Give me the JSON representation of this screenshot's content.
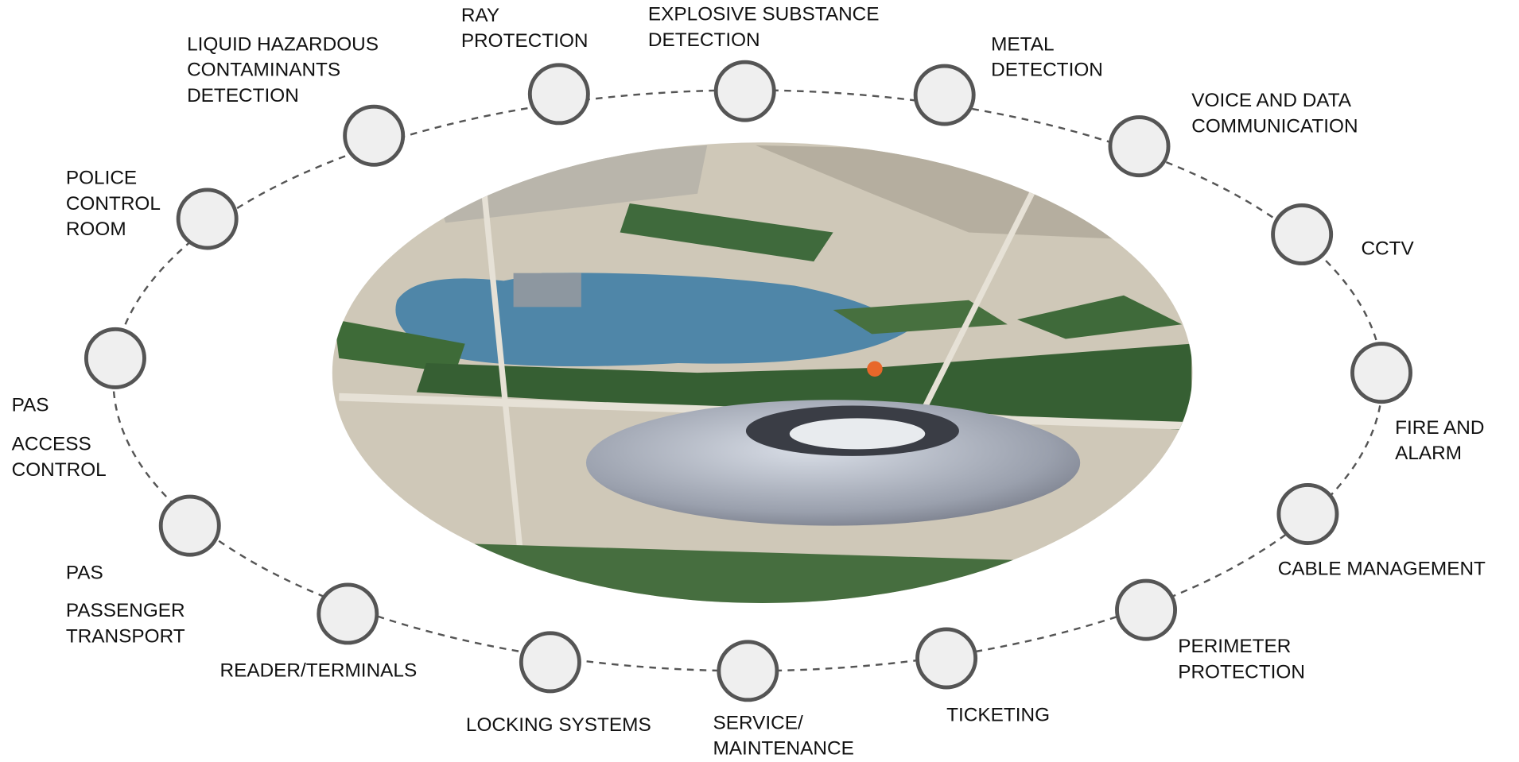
{
  "nodes": [
    {
      "label": [
        "POLICE",
        "CONTROL",
        "ROOM"
      ]
    },
    {
      "label": [
        "LIQUID HAZARDOUS",
        "CONTAMINANTS",
        "DETECTION"
      ]
    },
    {
      "label": [
        "RAY",
        "PROTECTION"
      ]
    },
    {
      "label": [
        "EXPLOSIVE SUBSTANCE",
        "DETECTION"
      ]
    },
    {
      "label": [
        "METAL",
        "DETECTION"
      ]
    },
    {
      "label": [
        "VOICE AND DATA",
        "COMMUNICATION"
      ]
    },
    {
      "label": [
        "CCTV"
      ]
    },
    {
      "label": [
        "FIRE AND",
        "ALARM"
      ]
    },
    {
      "label": [
        "CABLE MANAGEMENT"
      ]
    },
    {
      "label": [
        "PERIMETER",
        "PROTECTION"
      ]
    },
    {
      "label": [
        "TICKETING"
      ]
    },
    {
      "label": [
        "SERVICE/",
        "MAINTENANCE"
      ]
    },
    {
      "label": [
        "LOCKING SYSTEMS"
      ]
    },
    {
      "label": [
        "READER/TERMINALS"
      ]
    },
    {
      "tag": "PAS",
      "label": [
        "PASSENGER",
        "TRANSPORT"
      ]
    },
    {
      "tag": "PAS",
      "label": [
        "ACCESS",
        "CONTROL"
      ]
    }
  ]
}
